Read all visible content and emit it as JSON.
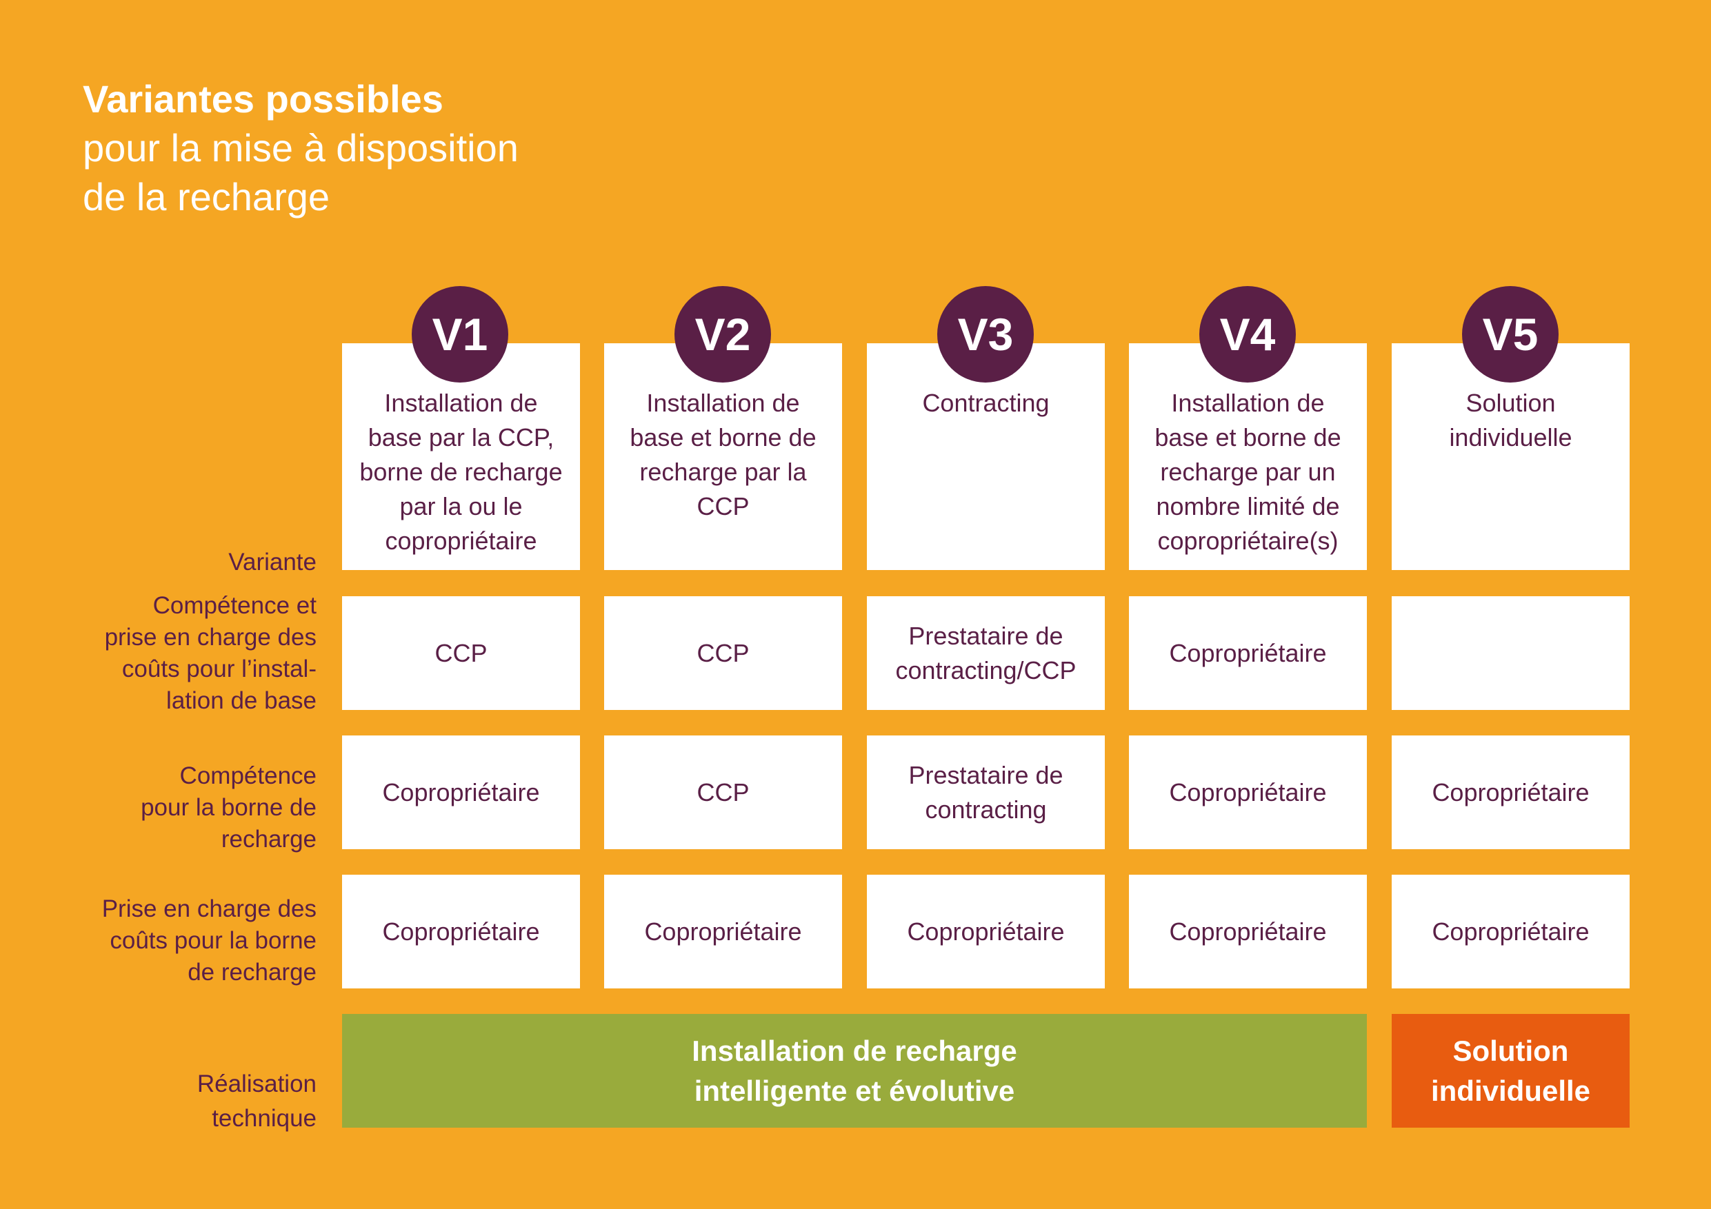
{
  "colors": {
    "background": "#f5a623",
    "accent_purple": "#5a1f46",
    "box_white": "#ffffff",
    "bar_green": "#99ab3c",
    "bar_orange": "#e85c10"
  },
  "title": {
    "bold": "Variantes possibles",
    "line2": "pour la mise à disposition",
    "line3": "de la recharge"
  },
  "row_labels": {
    "variante": "Variante",
    "competence_base": [
      "Compétence et",
      "prise en charge des",
      "coûts pour l’instal-",
      "lation de base"
    ],
    "competence_borne": [
      "Compétence",
      "pour la borne de",
      "recharge"
    ],
    "prise_couts_borne": [
      "Prise en charge des",
      "coûts pour la borne",
      "de recharge"
    ],
    "realisation": [
      "Réalisation",
      "technique"
    ]
  },
  "variants": [
    {
      "badge": "V1",
      "heading": [
        "Installation de",
        "base par la CCP,",
        "borne de recharge",
        "par la ou le",
        "copropriétaire"
      ],
      "competence_base": [
        "CCP"
      ],
      "competence_borne": [
        "Copropriétaire"
      ],
      "prise_couts": [
        "Copropriétaire"
      ]
    },
    {
      "badge": "V2",
      "heading": [
        "Installation de",
        "base et borne de",
        "recharge par la",
        "CCP"
      ],
      "competence_base": [
        "CCP"
      ],
      "competence_borne": [
        "CCP"
      ],
      "prise_couts": [
        "Copropriétaire"
      ]
    },
    {
      "badge": "V3",
      "heading": [
        "Contracting"
      ],
      "competence_base": [
        "Prestataire de",
        "contracting/CCP"
      ],
      "competence_borne": [
        "Prestataire de",
        "contracting"
      ],
      "prise_couts": [
        "Copropriétaire"
      ]
    },
    {
      "badge": "V4",
      "heading": [
        "Installation de",
        "base et borne de",
        "recharge par un",
        "nombre limité de",
        "copropriétaire(s)"
      ],
      "competence_base": [
        "Copropriétaire"
      ],
      "competence_borne": [
        "Copropriétaire"
      ],
      "prise_couts": [
        "Copropriétaire"
      ]
    },
    {
      "badge": "V5",
      "heading": [
        "Solution",
        "individuelle"
      ],
      "competence_base": [],
      "competence_borne": [
        "Copropriétaire"
      ],
      "prise_couts": [
        "Copropriétaire"
      ]
    }
  ],
  "realisation": {
    "shared": [
      "Installation de recharge",
      "intelligente et évolutive"
    ],
    "individual": [
      "Solution",
      "individuelle"
    ]
  }
}
